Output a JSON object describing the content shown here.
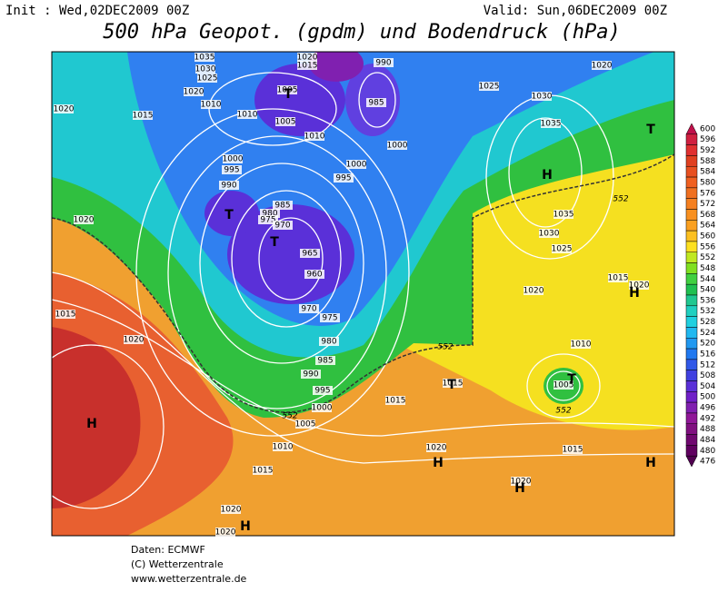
{
  "header": {
    "init": "Init : Wed,02DEC2009 00Z",
    "valid": "Valid: Sun,06DEC2009 00Z",
    "title": "500 hPa Geopot. (gpdm) und Bodendruck (hPa)"
  },
  "colorbar": {
    "levels": [
      600,
      596,
      592,
      588,
      584,
      580,
      576,
      572,
      568,
      564,
      560,
      556,
      552,
      548,
      544,
      540,
      536,
      532,
      528,
      524,
      520,
      516,
      512,
      508,
      504,
      500,
      496,
      492,
      488,
      484,
      480,
      476
    ],
    "colors": [
      "#c0104a",
      "#d02040",
      "#e03030",
      "#e04020",
      "#e85020",
      "#f06020",
      "#f07020",
      "#f58020",
      "#f89020",
      "#faa020",
      "#fcc020",
      "#fde020",
      "#c0e820",
      "#80e020",
      "#40d040",
      "#20c050",
      "#20c890",
      "#20d0c0",
      "#20d0e0",
      "#20b8f0",
      "#2098f0",
      "#2078f0",
      "#3058e8",
      "#4040e0",
      "#5a30d8",
      "#7020c8",
      "#8020b0",
      "#901898",
      "#801080",
      "#700870",
      "#600060",
      "#500050"
    ]
  },
  "isobar_labels": [
    "1035",
    "1030",
    "1025",
    "1020",
    "1020",
    "1015",
    "1010",
    "1010",
    "1005",
    "1005",
    "1010",
    "1020",
    "1015",
    "990",
    "985",
    "1000",
    "1025",
    "1020",
    "1030",
    "1035",
    "1000",
    "995",
    "990",
    "1000",
    "995",
    "985",
    "980",
    "975",
    "970",
    "965",
    "960",
    "970",
    "975",
    "980",
    "985",
    "990",
    "995",
    "1000",
    "1005",
    "1010",
    "1015",
    "1020",
    "1015",
    "1020",
    "1035",
    "1030",
    "1025",
    "1020",
    "1015",
    "1020",
    "1010",
    "1015",
    "1015",
    "1005",
    "1020",
    "1015",
    "1020",
    "1020",
    "1020"
  ],
  "geopotential_labels": [
    "552",
    "552",
    "552",
    "552"
  ],
  "pressure_centers": [
    "T",
    "H",
    "T",
    "T",
    "T",
    "H",
    "T",
    "H",
    "H",
    "H",
    "H",
    "H",
    "T"
  ],
  "footer": [
    "Daten: ECMWF",
    "(C) Wetterzentrale",
    "www.wetterzentrale.de"
  ]
}
